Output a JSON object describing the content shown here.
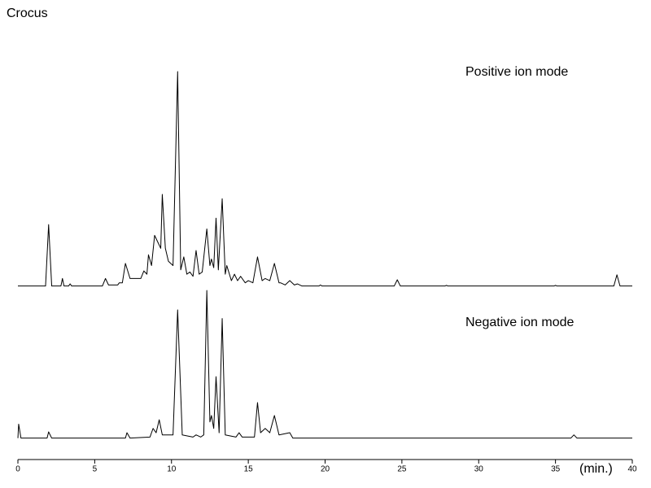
{
  "chart_data": {
    "type": "line",
    "title": "Crocus",
    "xlabel": "(min.)",
    "xlim": [
      0,
      40
    ],
    "xticks": [
      0,
      5,
      10,
      15,
      20,
      25,
      30,
      35,
      40
    ],
    "ylim": [
      0,
      100
    ],
    "series": [
      {
        "name": "Positive ion mode",
        "color": "#000000",
        "x": [
          0,
          1.8,
          2.0,
          2.2,
          2.8,
          2.9,
          3.0,
          3.3,
          3.4,
          3.5,
          5.5,
          5.7,
          5.9,
          6.5,
          6.6,
          6.8,
          7.0,
          7.3,
          8.0,
          8.2,
          8.4,
          8.5,
          8.7,
          8.9,
          9.1,
          9.3,
          9.4,
          9.6,
          9.8,
          10.1,
          10.4,
          10.6,
          10.8,
          11.0,
          11.2,
          11.4,
          11.6,
          11.8,
          12.0,
          12.3,
          12.5,
          12.6,
          12.75,
          12.9,
          13.05,
          13.3,
          13.5,
          13.6,
          13.9,
          14.1,
          14.3,
          14.5,
          14.8,
          15.0,
          15.3,
          15.6,
          15.9,
          16.1,
          16.4,
          16.7,
          17.0,
          17.1,
          17.4,
          17.7,
          18.0,
          18.2,
          18.5,
          19.6,
          19.7,
          19.8,
          24.5,
          24.7,
          24.9,
          27.8,
          27.9,
          28.0,
          34.9,
          35.0,
          35.1,
          38.8,
          39.0,
          39.2,
          40
        ],
        "values": [
          0.5,
          0.5,
          29,
          0.5,
          0.5,
          4,
          0.5,
          0.5,
          1.5,
          0.5,
          0.5,
          4,
          1,
          1,
          2,
          2,
          11,
          4,
          4,
          7.5,
          6,
          15,
          10,
          24,
          21,
          18,
          43,
          18,
          12,
          10,
          100,
          8,
          14,
          6,
          7,
          5,
          17,
          6,
          7,
          27,
          10,
          13,
          9,
          32,
          8,
          41,
          6,
          10,
          3,
          6,
          3,
          5,
          2,
          3,
          2,
          14,
          3,
          4,
          3,
          11,
          2,
          2,
          1,
          3,
          1,
          1.5,
          0.5,
          0.5,
          1,
          0.5,
          0.5,
          3.4,
          0.5,
          0.5,
          0.8,
          0.5,
          0.5,
          0.8,
          0.5,
          0.5,
          5.7,
          0.5,
          0.5
        ]
      },
      {
        "name": "Negative ion mode",
        "color": "#000000",
        "x": [
          0,
          0.05,
          0.2,
          1.9,
          2.0,
          2.2,
          7.0,
          7.1,
          7.3,
          8.6,
          8.8,
          9.0,
          9.2,
          9.4,
          10.1,
          10.4,
          10.7,
          11.4,
          11.6,
          11.9,
          12.1,
          12.3,
          12.5,
          12.6,
          12.75,
          12.9,
          13.1,
          13.3,
          13.5,
          14.2,
          14.4,
          14.6,
          15.4,
          15.6,
          15.8,
          16.1,
          16.4,
          16.7,
          17.0,
          17.7,
          17.9,
          36.0,
          36.2,
          36.4,
          40
        ],
        "values": [
          0.5,
          7,
          0.5,
          0.5,
          3.4,
          0.5,
          0.5,
          3,
          0.5,
          1,
          5,
          3,
          9,
          2,
          2,
          60,
          2,
          1,
          2,
          1,
          2,
          69,
          8,
          11,
          5,
          29,
          3,
          56,
          2,
          1,
          3,
          1,
          1,
          17,
          3,
          5,
          3,
          11,
          2,
          3,
          0.5,
          0.5,
          2,
          0.5,
          0.5
        ]
      }
    ]
  }
}
